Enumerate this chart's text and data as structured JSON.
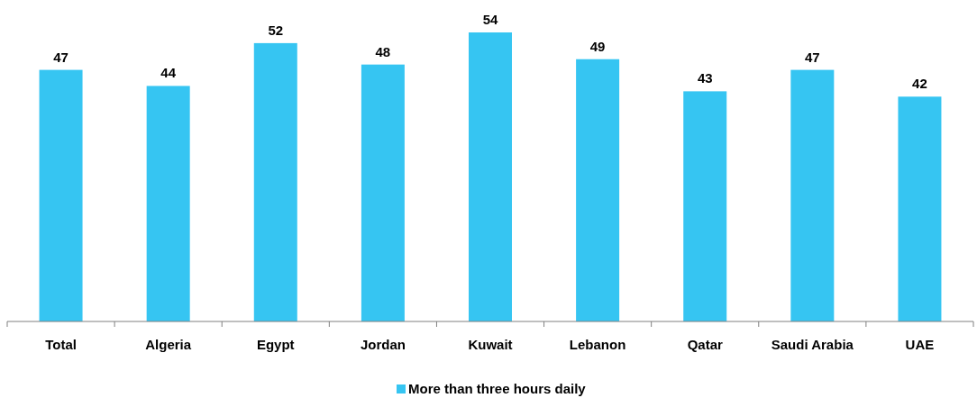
{
  "chart_data": {
    "type": "bar",
    "categories": [
      "Total",
      "Algeria",
      "Egypt",
      "Jordan",
      "Kuwait",
      "Lebanon",
      "Qatar",
      "Saudi Arabia",
      "UAE"
    ],
    "series": [
      {
        "name": "More than three hours daily",
        "color": "#36c5f2",
        "values": [
          47,
          44,
          52,
          48,
          54,
          49,
          43,
          47,
          42
        ]
      }
    ],
    "data_labels": true,
    "legend": "bottom"
  }
}
